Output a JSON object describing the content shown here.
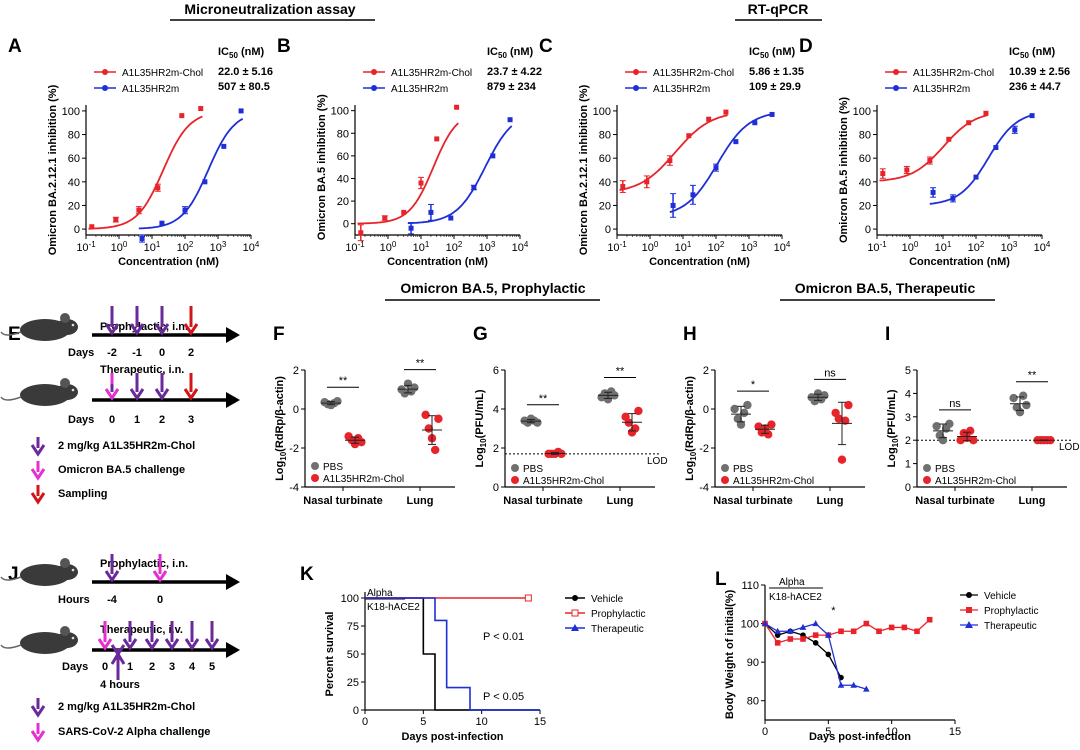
{
  "headers": {
    "micro": "Microneutralization assay",
    "rtqpcr": "RT-qPCR",
    "proph": "Omicron BA.5, Prophylactic",
    "ther": "Omicron BA.5, Therapeutic"
  },
  "colors": {
    "red": "#e8242b",
    "blue": "#1f2fd6",
    "purple": "#6a2a9a",
    "magenta": "#e62fd0",
    "darkred": "#d3141b",
    "grey": "#707070"
  },
  "ic50_label": "IC",
  "ic50_sub": "50",
  "ic50_unit": " (nM)",
  "curve_series": [
    "A1L35HR2m-Chol",
    "A1L35HR2m"
  ],
  "chart_data": [
    {
      "id": "A",
      "type": "line",
      "xlabel": "Concentration (nM)",
      "ylabel": "Omicron BA.2.12.1 inhibition (%)",
      "xscale": "log",
      "xlim": [
        0.1,
        10000
      ],
      "ylim": [
        0,
        100
      ],
      "xticks": [
        "10-1",
        "100",
        "101",
        "102",
        "103",
        "104"
      ],
      "yticks": [
        0,
        20,
        40,
        60,
        80,
        100
      ],
      "ic50": [
        "22.0 ± 5.16",
        "507 ± 80.5"
      ],
      "series": [
        {
          "name": "A1L35HR2m-Chol",
          "x": [
            0.15,
            0.8,
            4,
            15,
            80,
            300
          ],
          "y": [
            2,
            8,
            16,
            35,
            96,
            102
          ],
          "err": [
            0,
            2,
            3,
            3,
            0,
            0
          ],
          "ec50": 22,
          "hill": 1.1
        },
        {
          "name": "A1L35HR2m",
          "x": [
            5,
            20,
            100,
            400,
            1500,
            5000
          ],
          "y": [
            -8,
            5,
            16,
            40,
            70,
            100
          ],
          "err": [
            3,
            0,
            3,
            0,
            0,
            0
          ],
          "ec50": 507,
          "hill": 1.1
        }
      ]
    },
    {
      "id": "B",
      "type": "line",
      "xlabel": "Concentration (nM)",
      "ylabel": "Omicron BA.5 inhibition (%)",
      "xscale": "log",
      "xlim": [
        0.1,
        10000
      ],
      "ylim": [
        -10,
        100
      ],
      "xticks": [
        "10-1",
        "100",
        "101",
        "102",
        "103",
        "104"
      ],
      "yticks": [
        0,
        20,
        40,
        60,
        80,
        100
      ],
      "ic50": [
        "23.7 ± 4.22",
        "879 ± 234"
      ],
      "series": [
        {
          "name": "A1L35HR2m-Chol",
          "x": [
            0.15,
            0.8,
            3,
            10,
            30,
            120
          ],
          "y": [
            -8,
            5,
            10,
            36,
            75,
            103
          ],
          "err": [
            7,
            2,
            0,
            5,
            0,
            0
          ],
          "ec50": 23.7,
          "hill": 1.2
        },
        {
          "name": "A1L35HR2m",
          "x": [
            5,
            20,
            80,
            400,
            1500,
            5000
          ],
          "y": [
            -4,
            10,
            5,
            32,
            60,
            92
          ],
          "err": [
            5,
            7,
            0,
            2,
            0,
            0
          ],
          "ec50": 879,
          "hill": 1.0
        }
      ]
    },
    {
      "id": "C",
      "type": "line",
      "xlabel": "Concentration (nM)",
      "ylabel": "Omicron BA.2.12.1 inhibition (%)",
      "xscale": "log",
      "xlim": [
        0.1,
        10000
      ],
      "ylim": [
        0,
        100
      ],
      "xticks": [
        "10-1",
        "100",
        "101",
        "102",
        "103",
        "104"
      ],
      "yticks": [
        0,
        20,
        40,
        60,
        80,
        100
      ],
      "ic50": [
        "5.86 ± 1.35",
        "109 ± 29.9"
      ],
      "series": [
        {
          "name": "A1L35HR2m-Chol",
          "x": [
            0.15,
            0.8,
            4,
            15,
            60,
            200
          ],
          "y": [
            36,
            40,
            58,
            79,
            93,
            99
          ],
          "err": [
            5,
            5,
            4,
            0,
            0,
            0
          ],
          "ec50": 5.86,
          "hill": 0.8,
          "bottom": 30
        },
        {
          "name": "A1L35HR2m",
          "x": [
            5,
            20,
            100,
            400,
            1500,
            5000
          ],
          "y": [
            20,
            29,
            52,
            74,
            90,
            97
          ],
          "err": [
            10,
            8,
            3,
            0,
            0,
            0
          ],
          "ec50": 109,
          "hill": 0.9,
          "bottom": 10
        }
      ]
    },
    {
      "id": "D",
      "type": "line",
      "xlabel": "Concentration (nM)",
      "ylabel": "Omicron BA.5 inhibition (%)",
      "xscale": "log",
      "xlim": [
        0.1,
        10000
      ],
      "ylim": [
        0,
        100
      ],
      "xticks": [
        "10-1",
        "100",
        "101",
        "102",
        "103",
        "104"
      ],
      "yticks": [
        0,
        20,
        40,
        60,
        80,
        100
      ],
      "ic50": [
        "10.39 ± 2.56",
        "236 ± 44.7"
      ],
      "series": [
        {
          "name": "A1L35HR2m-Chol",
          "x": [
            0.15,
            0.8,
            4,
            15,
            60,
            200
          ],
          "y": [
            47,
            50,
            58,
            76,
            90,
            98
          ],
          "err": [
            4,
            3,
            3,
            0,
            0,
            0
          ],
          "ec50": 10.39,
          "hill": 0.9,
          "bottom": 40
        },
        {
          "name": "A1L35HR2m",
          "x": [
            5,
            20,
            100,
            400,
            1500,
            5000
          ],
          "y": [
            31,
            26,
            44,
            69,
            84,
            96
          ],
          "err": [
            4,
            3,
            0,
            0,
            3,
            0
          ],
          "ec50": 236,
          "hill": 1.0,
          "bottom": 20
        }
      ]
    },
    {
      "id": "F",
      "type": "scatter",
      "ylabel": "Log10(RdRp/β-actin)",
      "ylim": [
        -4,
        2
      ],
      "yticks": [
        -4,
        -2,
        0,
        2
      ],
      "categories": [
        "Nasal turbinate",
        "Lung"
      ],
      "sig": [
        "**",
        "**"
      ],
      "lod": null,
      "groups": [
        {
          "name": "PBS",
          "points": [
            [
              0.35,
              0.25,
              0.2,
              0.3,
              0.4
            ],
            [
              1.0,
              0.8,
              1.3,
              0.9,
              1.1
            ]
          ]
        },
        {
          "name": "A1L35HR2m-Chol",
          "points": [
            [
              -1.4,
              -1.6,
              -1.8,
              -1.5,
              -1.7
            ],
            [
              -0.3,
              -1.0,
              -1.5,
              -2.1,
              -0.5
            ]
          ]
        }
      ]
    },
    {
      "id": "G",
      "type": "scatter",
      "ylabel": "Log10(PFU/mL)",
      "ylim": [
        0,
        6
      ],
      "yticks": [
        0,
        2,
        4,
        6
      ],
      "categories": [
        "Nasal turbinate",
        "Lung"
      ],
      "sig": [
        "**",
        "**"
      ],
      "lod": 1.7,
      "lod_label": "LOD",
      "groups": [
        {
          "name": "PBS",
          "points": [
            [
              3.4,
              3.3,
              3.5,
              3.4,
              3.3
            ],
            [
              4.6,
              4.8,
              4.5,
              4.9,
              4.7
            ]
          ]
        },
        {
          "name": "A1L35HR2m-Chol",
          "points": [
            [
              1.7,
              1.7,
              1.7,
              1.8,
              1.7
            ],
            [
              3.6,
              3.3,
              2.8,
              3.0,
              3.9
            ]
          ]
        }
      ]
    },
    {
      "id": "H",
      "type": "scatter",
      "ylabel": "Log10(RdRp/β-actin)",
      "ylim": [
        -4,
        2
      ],
      "yticks": [
        -4,
        -2,
        0,
        2
      ],
      "categories": [
        "Nasal turbinate",
        "Lung"
      ],
      "sig": [
        "*",
        "ns"
      ],
      "lod": null,
      "groups": [
        {
          "name": "PBS",
          "points": [
            [
              0.0,
              -0.5,
              -0.8,
              -0.2,
              0.2
            ],
            [
              0.6,
              0.4,
              0.8,
              0.5,
              0.7
            ]
          ]
        },
        {
          "name": "A1L35HR2m-Chol",
          "points": [
            [
              -0.9,
              -1.2,
              -1.0,
              -1.3,
              -0.8
            ],
            [
              -0.2,
              -0.5,
              -2.6,
              -0.6,
              0.2
            ]
          ]
        }
      ]
    },
    {
      "id": "I",
      "type": "scatter",
      "ylabel": "Log10(PFU/mL)",
      "ylim": [
        0,
        5
      ],
      "yticks": [
        0,
        1,
        2,
        3,
        4,
        5
      ],
      "categories": [
        "Nasal turbinate",
        "Lung"
      ],
      "sig": [
        "ns",
        "**"
      ],
      "lod": 2.0,
      "lod_label": "LOD",
      "groups": [
        {
          "name": "PBS",
          "points": [
            [
              2.6,
              2.2,
              2.0,
              2.5,
              2.7
            ],
            [
              3.8,
              3.4,
              3.2,
              3.9,
              3.5
            ]
          ]
        },
        {
          "name": "A1L35HR2m-Chol",
          "points": [
            [
              2.0,
              2.3,
              2.1,
              2.4,
              2.0
            ],
            [
              2.0,
              2.0,
              2.0,
              2.0,
              2.0
            ]
          ]
        }
      ]
    },
    {
      "id": "K",
      "type": "line",
      "xlabel": "Days post-infection",
      "ylabel": "Percent survival",
      "xlim": [
        0,
        15
      ],
      "ylim": [
        0,
        100
      ],
      "xticks": [
        0,
        5,
        10,
        15
      ],
      "yticks": [
        0,
        25,
        50,
        75,
        100
      ],
      "tag1": "Alpha",
      "tag2": "K18-hACE2",
      "pvals": [
        "P < 0.01",
        "P < 0.05"
      ],
      "series": [
        {
          "name": "Vehicle",
          "steps": [
            [
              0,
              100
            ],
            [
              5,
              100
            ],
            [
              5,
              50
            ],
            [
              6,
              50
            ],
            [
              6,
              0
            ],
            [
              15,
              0
            ]
          ]
        },
        {
          "name": "Prophylactic",
          "steps": [
            [
              0,
              100
            ],
            [
              14,
              100
            ]
          ]
        },
        {
          "name": "Therapeutic",
          "steps": [
            [
              0,
              100
            ],
            [
              6,
              100
            ],
            [
              6,
              80
            ],
            [
              7,
              80
            ],
            [
              7,
              20
            ],
            [
              9,
              20
            ],
            [
              9,
              0
            ],
            [
              15,
              0
            ]
          ]
        }
      ]
    },
    {
      "id": "L",
      "type": "line",
      "xlabel": "Days post-infection",
      "ylabel": "Body Weight of initial(%)",
      "xlim": [
        0,
        15
      ],
      "ylim": [
        75,
        110
      ],
      "xticks": [
        0,
        5,
        10,
        15
      ],
      "yticks": [
        80,
        90,
        100,
        110
      ],
      "tag1": "Alpha",
      "tag2": "K18-hACE2",
      "sig": "*",
      "series": [
        {
          "name": "Vehicle",
          "x": [
            0,
            1,
            2,
            3,
            4,
            5,
            6
          ],
          "y": [
            100,
            97,
            98,
            97,
            95,
            92,
            86
          ]
        },
        {
          "name": "Prophylactic",
          "x": [
            0,
            1,
            2,
            3,
            4,
            5,
            6,
            7,
            8,
            9,
            10,
            11,
            12,
            13
          ],
          "y": [
            100,
            95,
            96,
            96,
            97,
            97,
            98,
            98,
            100,
            98,
            99,
            99,
            98,
            101
          ]
        },
        {
          "name": "Therapeutic",
          "x": [
            0,
            1,
            2,
            3,
            4,
            5,
            6,
            7,
            8
          ],
          "y": [
            100,
            98,
            98,
            99,
            100,
            97,
            84,
            84,
            83
          ]
        }
      ]
    }
  ],
  "schematic": {
    "E_proph_title": "Prophylactic, i.n.",
    "E_proph_days": [
      "-2",
      "-1",
      "0",
      "2"
    ],
    "E_ther_title": "Therapeutic, i.n.",
    "E_ther_days": [
      "0",
      "1",
      "2",
      "3"
    ],
    "days_label": "Days",
    "E_legend": [
      "2 mg/kg A1L35HR2m-Chol",
      "Omicron BA.5 challenge",
      "Sampling"
    ],
    "J_proph_title": "Prophylactic, i.n.",
    "hours_label": "Hours",
    "J_proph_hours": [
      "-4",
      "0"
    ],
    "J_ther_title": "Therapeutic, i.v.",
    "J_ther_days": [
      "0",
      "1",
      "2",
      "3",
      "4",
      "5"
    ],
    "four_hours": "4 hours",
    "J_legend": [
      "2 mg/kg A1L35HR2m-Chol",
      "SARS-CoV-2 Alpha challenge"
    ]
  }
}
